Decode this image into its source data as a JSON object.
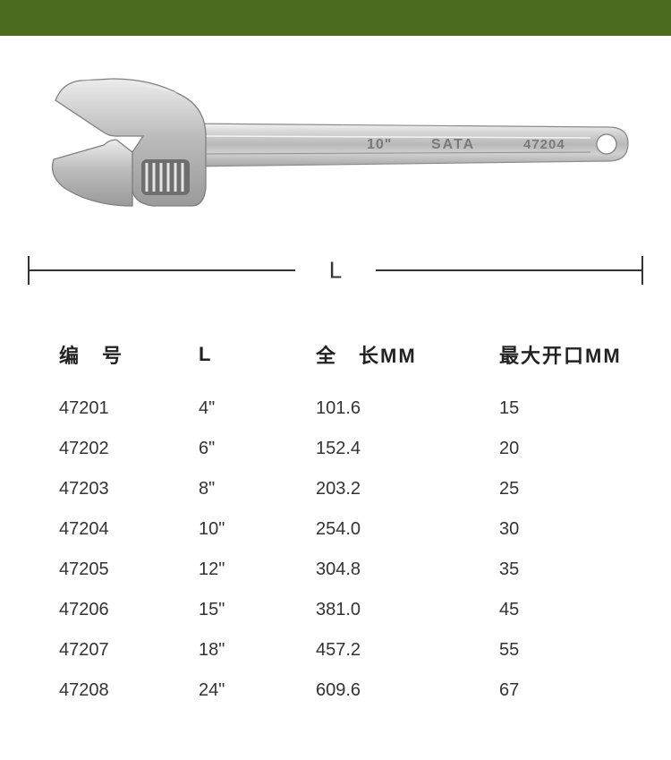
{
  "colors": {
    "top_bar": "#4c6b1f",
    "background": "#ffffff",
    "text": "#333333",
    "line": "#333333",
    "wrench_body": "#c8c8c8",
    "wrench_highlight": "#e4e4e4",
    "wrench_shadow": "#9a9a9a",
    "wrench_dark": "#6b6b6b"
  },
  "diagram": {
    "length_label": "L",
    "wrench_marking_size": "10\"",
    "wrench_marking_brand": "SATA",
    "wrench_marking_code": "47204"
  },
  "table": {
    "headers": [
      "编　号",
      "L",
      "全　长MM",
      "最大开口MM"
    ],
    "rows": [
      [
        "47201",
        "4\"",
        "101.6",
        "15"
      ],
      [
        "47202",
        "6\"",
        "152.4",
        "20"
      ],
      [
        "47203",
        "8\"",
        "203.2",
        "25"
      ],
      [
        "47204",
        "10\"",
        "254.0",
        "30"
      ],
      [
        "47205",
        "12\"",
        "304.8",
        "35"
      ],
      [
        "47206",
        "15\"",
        "381.0",
        "45"
      ],
      [
        "47207",
        "18\"",
        "457.2",
        "55"
      ],
      [
        "47208",
        "24\"",
        "609.6",
        "67"
      ]
    ],
    "col_classes": [
      "col0",
      "col1",
      "col2",
      "col3"
    ]
  }
}
